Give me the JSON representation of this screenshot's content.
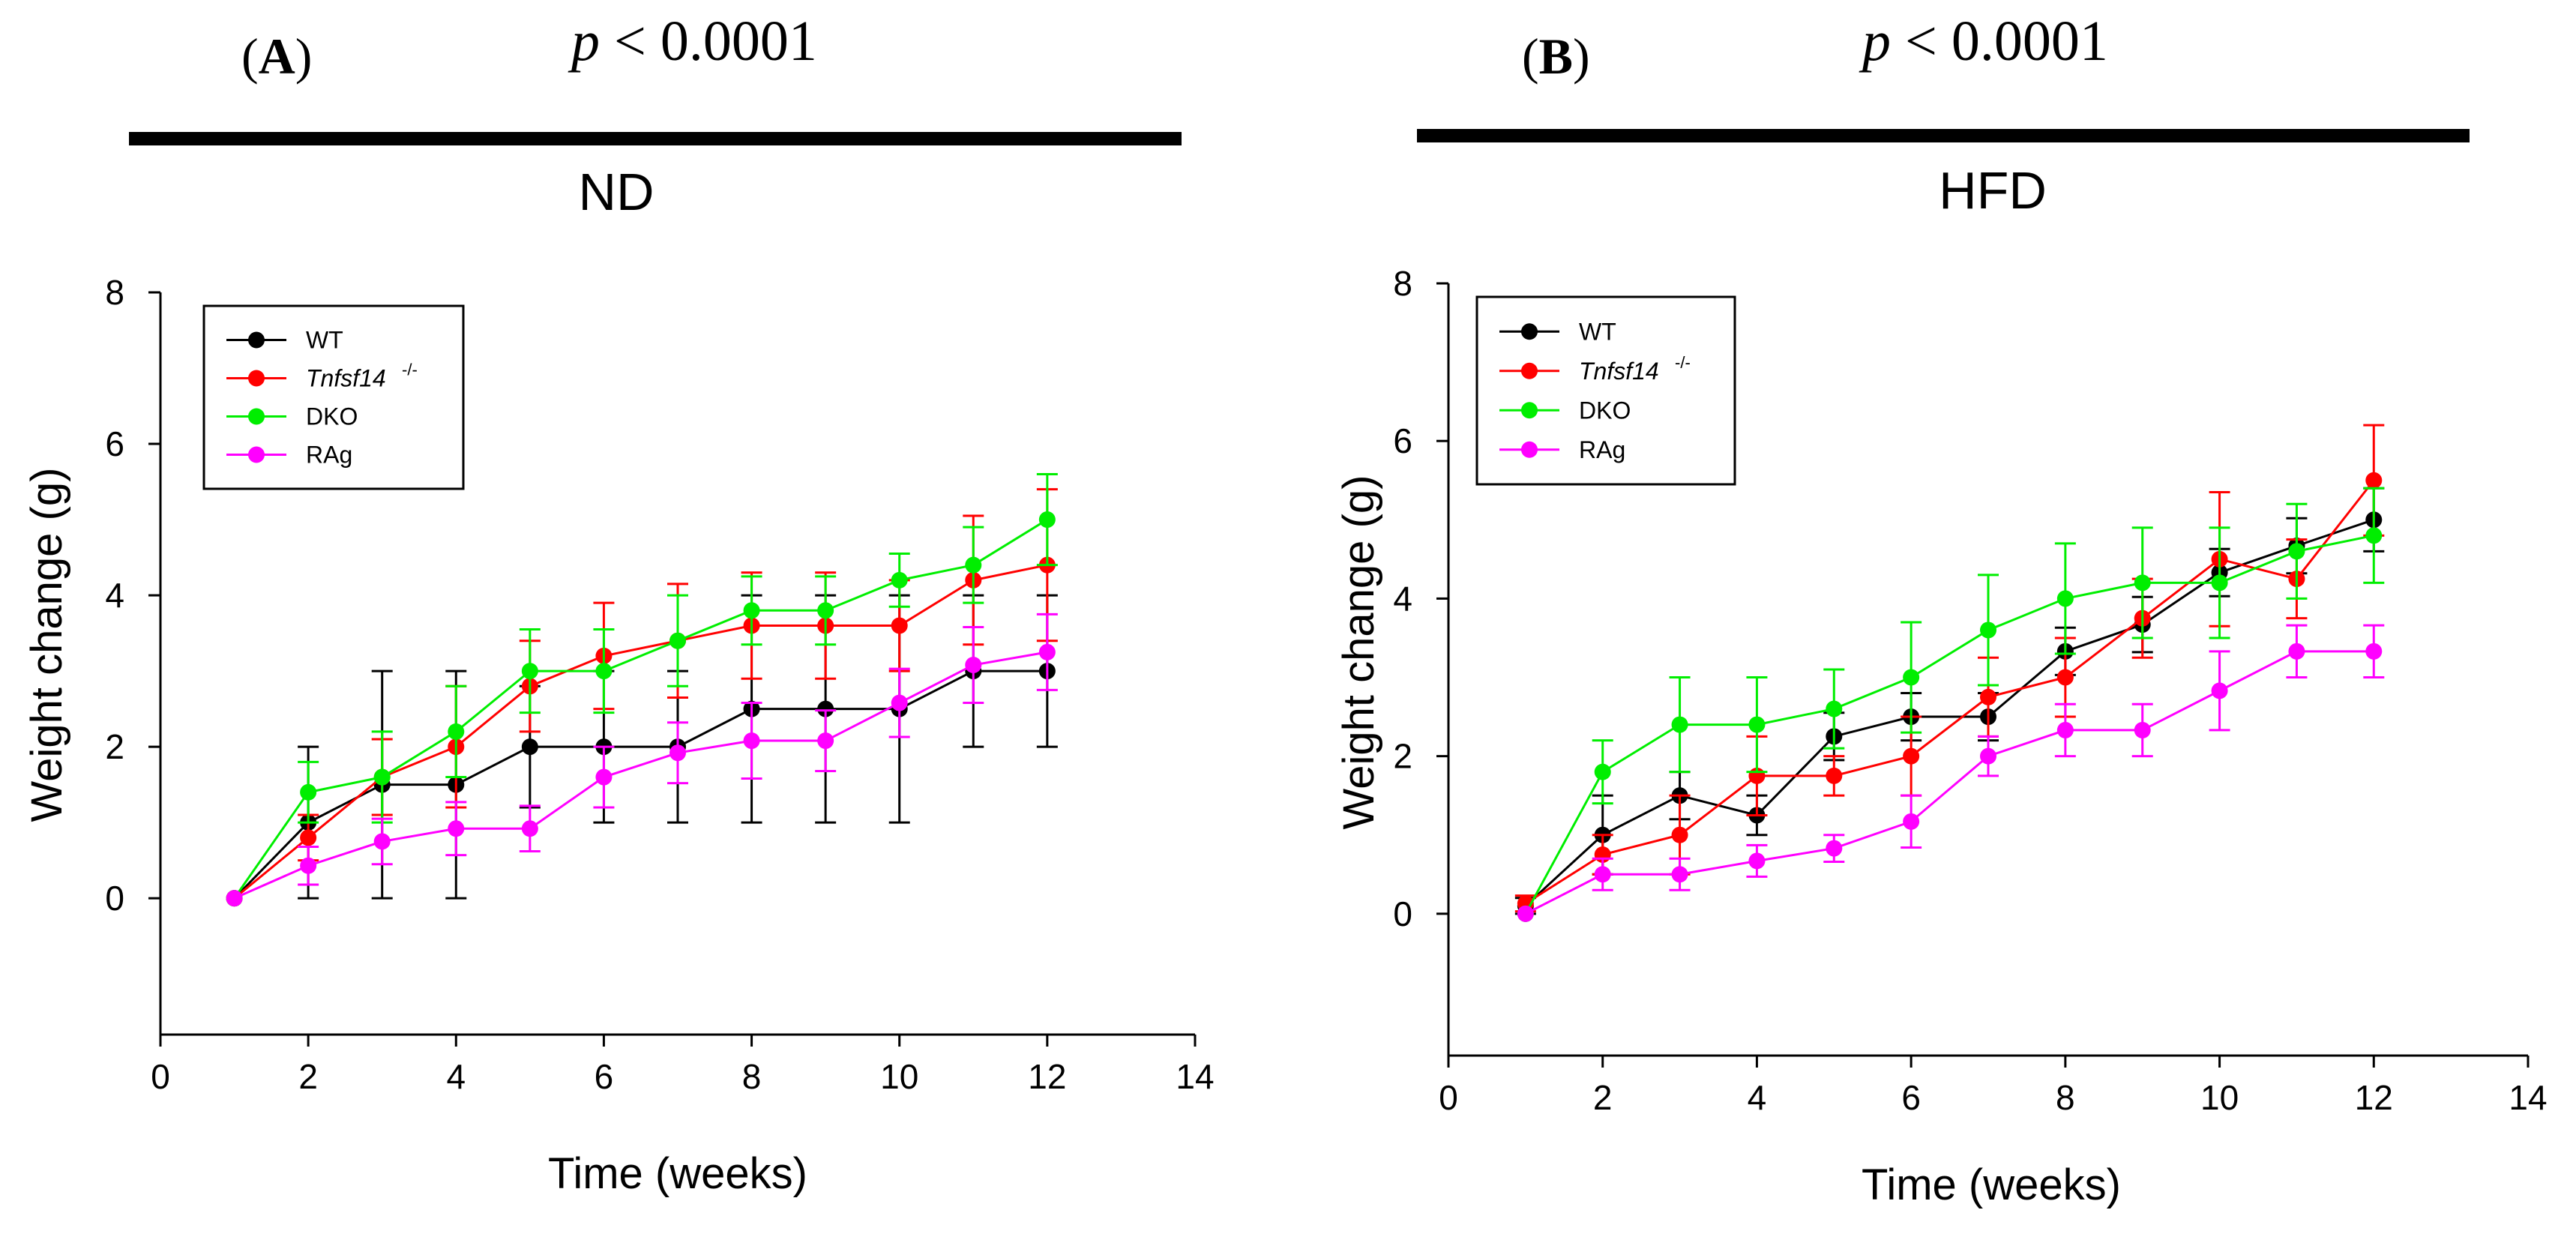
{
  "panels": [
    {
      "label_open": "(",
      "label_letter": "A",
      "label_close": ")",
      "p_symbol": "p",
      "p_text": " < 0.0001",
      "condition": "ND"
    },
    {
      "label_open": "(",
      "label_letter": "B",
      "label_close": ")",
      "p_symbol": "p",
      "p_text": " < 0.0001",
      "condition": "HFD"
    }
  ],
  "legend": [
    {
      "text": "WT",
      "italic": false,
      "sup": "",
      "color": "#000000"
    },
    {
      "text": "Tnfsf14",
      "italic": true,
      "sup": "-/-",
      "color": "#ff0000"
    },
    {
      "text": "DKO",
      "italic": false,
      "sup": "",
      "color": "#00ee00"
    },
    {
      "text": "RAg",
      "italic": false,
      "sup": "",
      "color": "#ff00ff"
    }
  ],
  "chart_data": [
    {
      "type": "line",
      "title": "ND",
      "xlabel": "Time (weeks)",
      "ylabel": "Weight change (g)",
      "xlim": [
        0,
        14
      ],
      "ylim": [
        -1.8,
        8
      ],
      "xticks": [
        0,
        2,
        4,
        6,
        8,
        10,
        12,
        14
      ],
      "yticks": [
        0,
        2,
        4,
        6,
        8
      ],
      "grid": false,
      "legend_position": "top-left",
      "x": [
        1,
        2,
        3,
        4,
        5,
        6,
        7,
        8,
        9,
        10,
        11,
        12
      ],
      "series": [
        {
          "name": "WT",
          "color": "#000000",
          "values": [
            0,
            1.0,
            1.5,
            1.5,
            2.0,
            2.0,
            2.0,
            2.5,
            2.5,
            2.5,
            3.0,
            3.0
          ],
          "error": [
            0,
            1.0,
            1.5,
            1.5,
            0.8,
            1.0,
            1.0,
            1.5,
            1.5,
            1.5,
            1.0,
            1.0
          ]
        },
        {
          "name": "Tnfsf14-/-",
          "color": "#ff0000",
          "values": [
            0,
            0.8,
            1.6,
            2.0,
            2.8,
            3.2,
            3.4,
            3.6,
            3.6,
            3.6,
            4.2,
            4.4
          ],
          "error": [
            0,
            0.3,
            0.5,
            0.8,
            0.6,
            0.7,
            0.75,
            0.7,
            0.7,
            0.6,
            0.85,
            1.0
          ]
        },
        {
          "name": "DKO",
          "color": "#00ee00",
          "values": [
            0,
            1.4,
            1.6,
            2.2,
            3.0,
            3.0,
            3.4,
            3.8,
            3.8,
            4.2,
            4.4,
            5.0
          ],
          "error": [
            0,
            0.4,
            0.6,
            0.6,
            0.55,
            0.55,
            0.6,
            0.45,
            0.45,
            0.35,
            0.5,
            0.6
          ]
        },
        {
          "name": "RAg",
          "color": "#ff00ff",
          "values": [
            0,
            0.43,
            0.75,
            0.92,
            0.92,
            1.6,
            1.92,
            2.08,
            2.08,
            2.58,
            3.08,
            3.25
          ],
          "error": [
            0,
            0.25,
            0.3,
            0.35,
            0.3,
            0.4,
            0.4,
            0.5,
            0.4,
            0.45,
            0.5,
            0.5
          ]
        }
      ]
    },
    {
      "type": "line",
      "title": "HFD",
      "xlabel": "Time (weeks)",
      "ylabel": "Weight change (g)",
      "xlim": [
        0,
        14
      ],
      "ylim": [
        -1.8,
        8
      ],
      "xticks": [
        0,
        2,
        4,
        6,
        8,
        10,
        12,
        14
      ],
      "yticks": [
        0,
        2,
        4,
        6,
        8
      ],
      "grid": false,
      "legend_position": "top-left",
      "x": [
        1,
        2,
        3,
        4,
        5,
        6,
        7,
        8,
        9,
        10,
        11,
        12
      ],
      "series": [
        {
          "name": "WT",
          "color": "#000000",
          "values": [
            0.1,
            1.0,
            1.5,
            1.25,
            2.25,
            2.5,
            2.5,
            3.33,
            3.67,
            4.33,
            4.67,
            5.0
          ],
          "error": [
            0.1,
            0.5,
            0.3,
            0.25,
            0.3,
            0.3,
            0.3,
            0.3,
            0.35,
            0.3,
            0.35,
            0.4
          ]
        },
        {
          "name": "Tnfsf14-/-",
          "color": "#ff0000",
          "values": [
            0.13,
            0.75,
            1.0,
            1.75,
            1.75,
            2.0,
            2.75,
            3.0,
            3.75,
            4.5,
            4.25,
            5.5
          ],
          "error": [
            0.1,
            0.25,
            0.5,
            0.5,
            0.25,
            0.5,
            0.5,
            0.5,
            0.5,
            0.85,
            0.5,
            0.7
          ]
        },
        {
          "name": "DKO",
          "color": "#00ee00",
          "values": [
            0,
            1.8,
            2.4,
            2.4,
            2.6,
            3.0,
            3.6,
            4.0,
            4.2,
            4.2,
            4.6,
            4.8
          ],
          "error": [
            0,
            0.4,
            0.6,
            0.6,
            0.5,
            0.7,
            0.7,
            0.7,
            0.7,
            0.7,
            0.6,
            0.6
          ]
        },
        {
          "name": "RAg",
          "color": "#ff00ff",
          "values": [
            0,
            0.5,
            0.5,
            0.67,
            0.83,
            1.17,
            2.0,
            2.33,
            2.33,
            2.83,
            3.33,
            3.33
          ],
          "error": [
            0,
            0.2,
            0.2,
            0.2,
            0.17,
            0.33,
            0.25,
            0.33,
            0.33,
            0.5,
            0.33,
            0.33
          ]
        }
      ]
    }
  ]
}
